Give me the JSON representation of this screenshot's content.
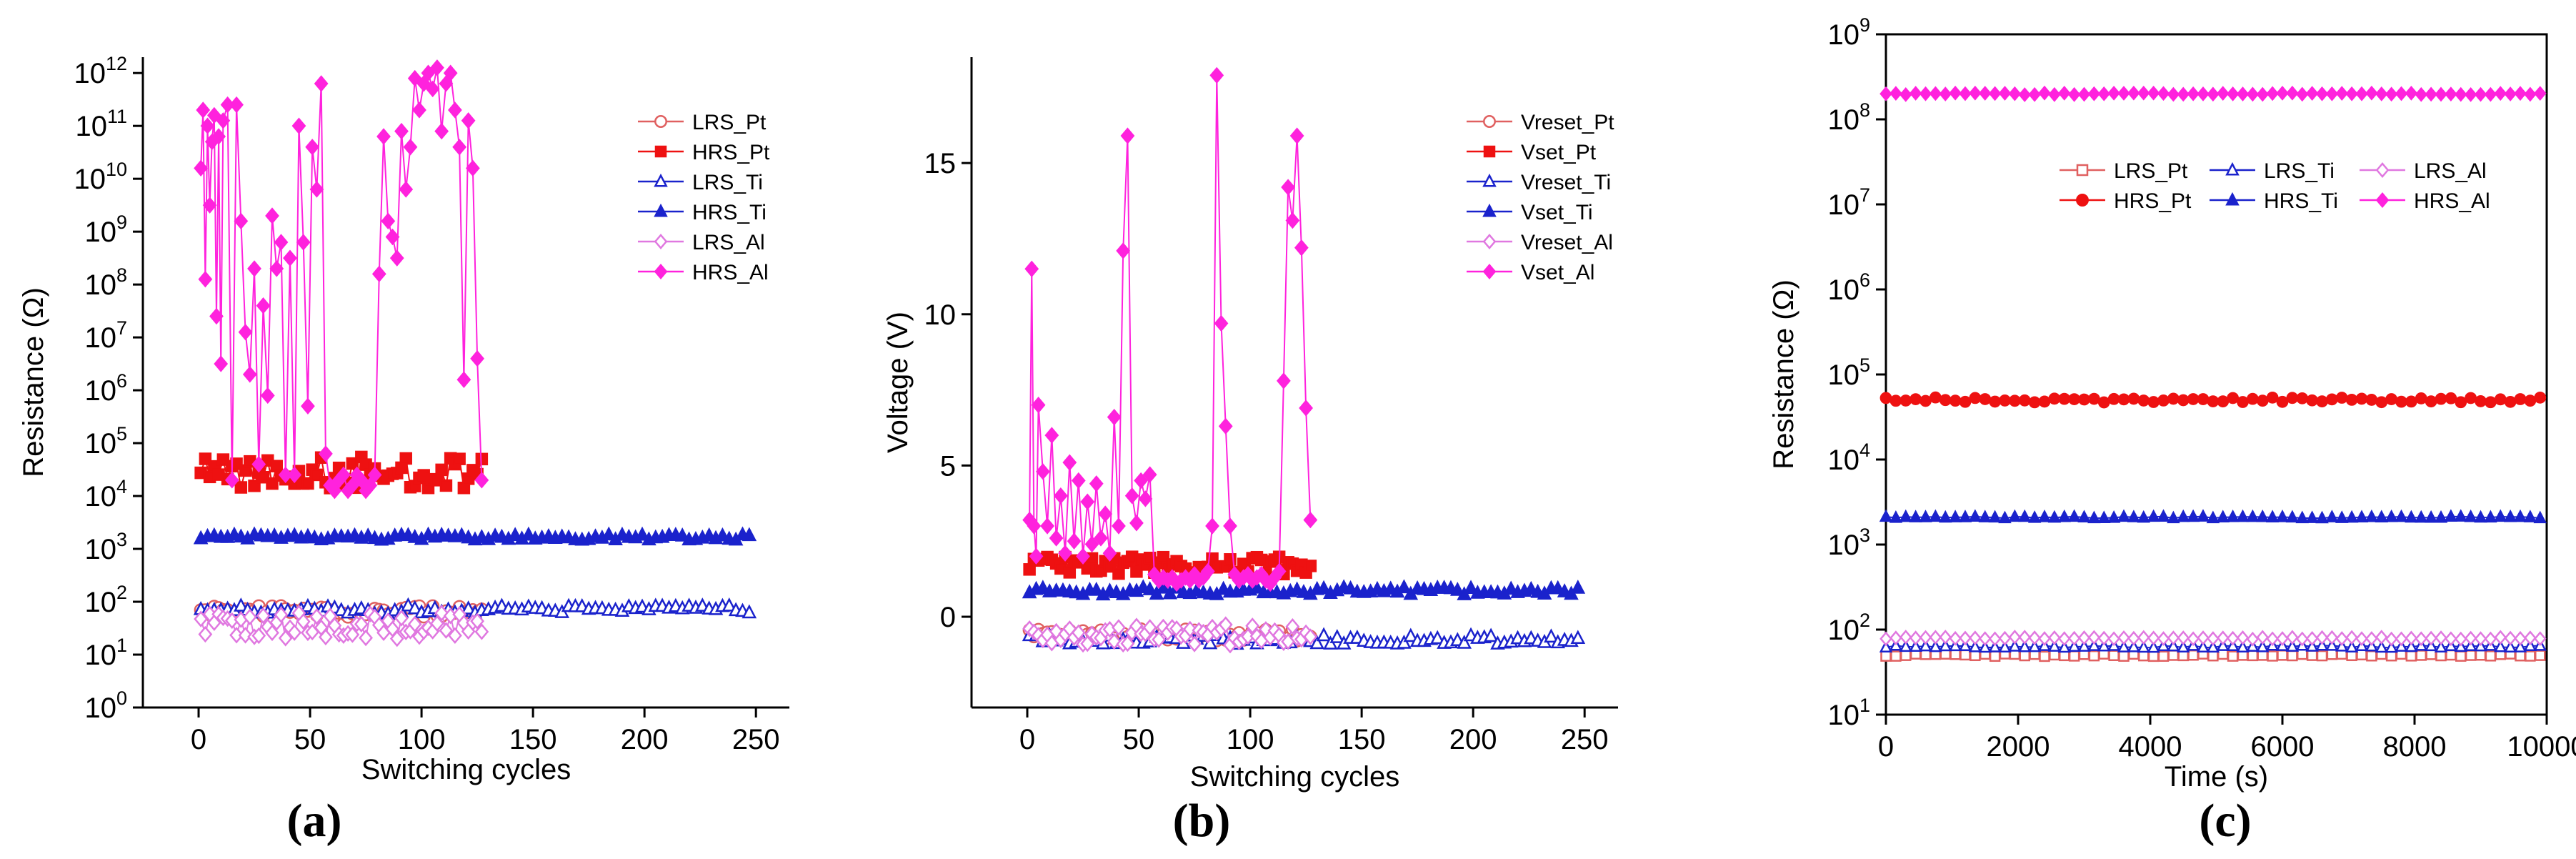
{
  "colors": {
    "pt_lrs": "#e06060",
    "pt_hrs": "#ee1111",
    "ti": "#1a22cc",
    "al": "#ff22dd",
    "al_lrs": "#e078e0"
  },
  "chart_data": [
    {
      "type": "scatter",
      "panel_label": "(a)",
      "xlabel": "Switching cycles",
      "ylabel": "Resistance (Ω)",
      "yscale": "log",
      "xlim": [
        -25,
        265
      ],
      "ylim": [
        0,
        12.3
      ],
      "xticks": [
        0,
        50,
        100,
        150,
        200,
        250
      ],
      "yticks": [
        {
          "v": 0,
          "base": "10",
          "exp": "0"
        },
        {
          "v": 1,
          "base": "10",
          "exp": "1"
        },
        {
          "v": 2,
          "base": "10",
          "exp": "2"
        },
        {
          "v": 3,
          "base": "10",
          "exp": "3"
        },
        {
          "v": 4,
          "base": "10",
          "exp": "4"
        },
        {
          "v": 5,
          "base": "10",
          "exp": "5"
        },
        {
          "v": 6,
          "base": "10",
          "exp": "6"
        },
        {
          "v": 7,
          "base": "10",
          "exp": "7"
        },
        {
          "v": 8,
          "base": "10",
          "exp": "8"
        },
        {
          "v": 9,
          "base": "10",
          "exp": "9"
        },
        {
          "v": 10,
          "base": "10",
          "exp": "10"
        },
        {
          "v": 11,
          "base": "10",
          "exp": "11"
        },
        {
          "v": 12,
          "base": "10",
          "exp": "12"
        }
      ],
      "series": [
        {
          "name": "LRS_Pt",
          "color": "#e06060",
          "marker": "circle",
          "filled": false,
          "gen": {
            "x0": 1,
            "x1": 128,
            "step": 2,
            "center": 1.8,
            "noise": 0.12
          }
        },
        {
          "name": "HRS_Pt",
          "color": "#ee1111",
          "marker": "square",
          "filled": true,
          "gen": {
            "x0": 1,
            "x1": 128,
            "step": 2,
            "center": 4.45,
            "noise": 0.3
          }
        },
        {
          "name": "LRS_Ti",
          "color": "#1a22cc",
          "marker": "triangle",
          "filled": false,
          "gen": {
            "x0": 1,
            "x1": 248,
            "step": 3,
            "center": 1.85,
            "noise": 0.08
          }
        },
        {
          "name": "HRS_Ti",
          "color": "#1a22cc",
          "marker": "triangle",
          "filled": true,
          "gen": {
            "x0": 1,
            "x1": 248,
            "step": 3,
            "center": 3.22,
            "noise": 0.05
          }
        },
        {
          "name": "LRS_Al",
          "color": "#e078e0",
          "marker": "diamond",
          "filled": false,
          "gen": {
            "x0": 1,
            "x1": 128,
            "step": 2,
            "center": 1.55,
            "noise": 0.25
          }
        },
        {
          "name": "HRS_Al",
          "color": "#ff22dd",
          "marker": "diamond",
          "filled": true,
          "x": [
            1,
            2,
            3,
            4,
            5,
            6,
            7,
            8,
            9,
            10,
            11,
            13,
            15,
            17,
            19,
            21,
            23,
            25,
            27,
            29,
            31,
            33,
            35,
            37,
            39,
            41,
            43,
            45,
            47,
            49,
            51,
            53,
            55,
            57,
            59,
            61,
            63,
            65,
            67,
            69,
            71,
            73,
            75,
            77,
            79,
            81,
            83,
            85,
            87,
            89,
            91,
            93,
            95,
            97,
            99,
            101,
            103,
            105,
            107,
            109,
            111,
            113,
            115,
            117,
            119,
            121,
            123,
            125,
            127
          ],
          "y": [
            10.2,
            11.3,
            8.1,
            11,
            9.5,
            10.7,
            11.2,
            7.4,
            10.8,
            6.5,
            11.1,
            11.4,
            4.3,
            11.4,
            9.2,
            7.1,
            6.3,
            8.3,
            4.6,
            7.6,
            5.9,
            9.3,
            8.3,
            8.8,
            4.4,
            8.5,
            4.4,
            11,
            8.8,
            5.7,
            10.6,
            9.8,
            11.8,
            4.8,
            4.2,
            4.1,
            4.3,
            4.4,
            4.1,
            4.2,
            4.4,
            4.3,
            4.1,
            4.2,
            4.4,
            8.2,
            10.8,
            9.2,
            8.9,
            8.5,
            10.9,
            9.8,
            10.6,
            11.9,
            11.3,
            11.8,
            12,
            11.7,
            12.1,
            10.9,
            11.8,
            12,
            11.3,
            10.6,
            6.2,
            11.1,
            10.2,
            6.6,
            4.3
          ]
        }
      ],
      "legend": [
        "LRS_Pt",
        "HRS_Pt",
        "LRS_Ti",
        "HRS_Ti",
        "LRS_Al",
        "HRS_Al"
      ]
    },
    {
      "type": "scatter",
      "panel_label": "(b)",
      "xlabel": "Switching cycles",
      "ylabel": "Voltage (V)",
      "yscale": "linear",
      "xlim": [
        -25,
        265
      ],
      "ylim": [
        -3,
        18.5
      ],
      "xticks": [
        0,
        50,
        100,
        150,
        200,
        250
      ],
      "yticks": [
        0,
        5,
        10,
        15
      ],
      "series": [
        {
          "name": "Vreset_Pt",
          "color": "#e06060",
          "marker": "circle",
          "filled": false,
          "gen": {
            "x0": 1,
            "x1": 128,
            "step": 2,
            "center": -0.6,
            "noise": 0.2
          }
        },
        {
          "name": "Vset_Pt",
          "color": "#ee1111",
          "marker": "square",
          "filled": true,
          "gen": {
            "x0": 1,
            "x1": 128,
            "step": 2,
            "center": 1.7,
            "noise": 0.3
          }
        },
        {
          "name": "Vreset_Ti",
          "color": "#1a22cc",
          "marker": "triangle",
          "filled": false,
          "gen": {
            "x0": 1,
            "x1": 248,
            "step": 3,
            "center": -0.75,
            "noise": 0.15
          }
        },
        {
          "name": "Vset_Ti",
          "color": "#1a22cc",
          "marker": "triangle",
          "filled": true,
          "gen": {
            "x0": 1,
            "x1": 248,
            "step": 3,
            "center": 0.85,
            "noise": 0.12
          }
        },
        {
          "name": "Vreset_Al",
          "color": "#e078e0",
          "marker": "diamond",
          "filled": false,
          "gen": {
            "x0": 1,
            "x1": 128,
            "step": 2,
            "center": -0.6,
            "noise": 0.35
          }
        },
        {
          "name": "Vset_Al",
          "color": "#ff22dd",
          "marker": "diamond",
          "filled": true,
          "x": [
            1,
            2,
            3,
            4,
            5,
            7,
            9,
            11,
            13,
            15,
            17,
            19,
            21,
            23,
            25,
            27,
            29,
            31,
            33,
            35,
            37,
            39,
            41,
            43,
            45,
            47,
            49,
            51,
            53,
            55,
            57,
            59,
            61,
            63,
            65,
            67,
            69,
            71,
            73,
            75,
            77,
            79,
            81,
            83,
            85,
            87,
            89,
            91,
            93,
            95,
            97,
            99,
            101,
            103,
            105,
            107,
            109,
            111,
            113,
            115,
            117,
            119,
            121,
            123,
            125,
            127
          ],
          "y": [
            3.2,
            11.5,
            3,
            2,
            7,
            4.8,
            3,
            6,
            2.6,
            4,
            2.1,
            5.1,
            2.5,
            4.5,
            2,
            3.8,
            2.4,
            4.4,
            2.6,
            3.4,
            2.1,
            6.6,
            3,
            12.1,
            15.9,
            4,
            3.1,
            4.5,
            3.9,
            4.7,
            1.4,
            1.2,
            1.3,
            1.2,
            1.3,
            1.1,
            1.2,
            1.3,
            1.2,
            1.4,
            1.2,
            1.3,
            1.5,
            3,
            17.9,
            9.7,
            6.3,
            3,
            1.4,
            1.2,
            1.3,
            1.4,
            1.2,
            1.3,
            1.4,
            1.2,
            1.1,
            1.3,
            1.5,
            7.8,
            14.2,
            13.1,
            15.9,
            12.2,
            6.9,
            3.2
          ]
        }
      ],
      "legend": [
        "Vreset_Pt",
        "Vset_Pt",
        "Vreset_Ti",
        "Vset_Ti",
        "Vreset_Al",
        "Vset_Al"
      ]
    },
    {
      "type": "line",
      "panel_label": "(c)",
      "xlabel": "Time (s)",
      "ylabel": "Resistance (Ω)",
      "yscale": "log",
      "xlim": [
        0,
        10000
      ],
      "ylim": [
        1,
        9
      ],
      "xticks": [
        0,
        2000,
        4000,
        6000,
        8000,
        10000
      ],
      "yticks": [
        {
          "v": 1,
          "base": "10",
          "exp": "1"
        },
        {
          "v": 2,
          "base": "10",
          "exp": "2"
        },
        {
          "v": 3,
          "base": "10",
          "exp": "3"
        },
        {
          "v": 4,
          "base": "10",
          "exp": "4"
        },
        {
          "v": 5,
          "base": "10",
          "exp": "5"
        },
        {
          "v": 6,
          "base": "10",
          "exp": "6"
        },
        {
          "v": 7,
          "base": "10",
          "exp": "7"
        },
        {
          "v": 8,
          "base": "10",
          "exp": "8"
        },
        {
          "v": 9,
          "base": "10",
          "exp": "9"
        }
      ],
      "series": [
        {
          "name": "LRS_Pt",
          "color": "#e06060",
          "marker": "square",
          "filled": false,
          "gen": {
            "x0": 0,
            "x1": 10000,
            "step": 150,
            "center": 1.7,
            "noise": 0.015
          }
        },
        {
          "name": "HRS_Pt",
          "color": "#ee1111",
          "marker": "circle",
          "filled": true,
          "gen": {
            "x0": 0,
            "x1": 10000,
            "step": 150,
            "center": 4.7,
            "noise": 0.03
          }
        },
        {
          "name": "LRS_Ti",
          "color": "#1a22cc",
          "marker": "triangle",
          "filled": false,
          "gen": {
            "x0": 0,
            "x1": 10000,
            "step": 150,
            "center": 1.8,
            "noise": 0.012
          }
        },
        {
          "name": "HRS_Ti",
          "color": "#1a22cc",
          "marker": "triangle",
          "filled": true,
          "gen": {
            "x0": 0,
            "x1": 10000,
            "step": 150,
            "center": 3.32,
            "noise": 0.01
          }
        },
        {
          "name": "LRS_Al",
          "color": "#e078e0",
          "marker": "diamond",
          "filled": false,
          "gen": {
            "x0": 0,
            "x1": 10000,
            "step": 150,
            "center": 1.9,
            "noise": 0.012
          }
        },
        {
          "name": "HRS_Al",
          "color": "#ff22dd",
          "marker": "diamond",
          "filled": true,
          "gen": {
            "x0": 0,
            "x1": 10000,
            "step": 150,
            "center": 8.3,
            "noise": 0.01
          }
        }
      ],
      "legend": [
        "LRS_Pt",
        "LRS_Ti",
        "LRS_Al",
        "HRS_Pt",
        "HRS_Ti",
        "HRS_Al"
      ]
    }
  ]
}
